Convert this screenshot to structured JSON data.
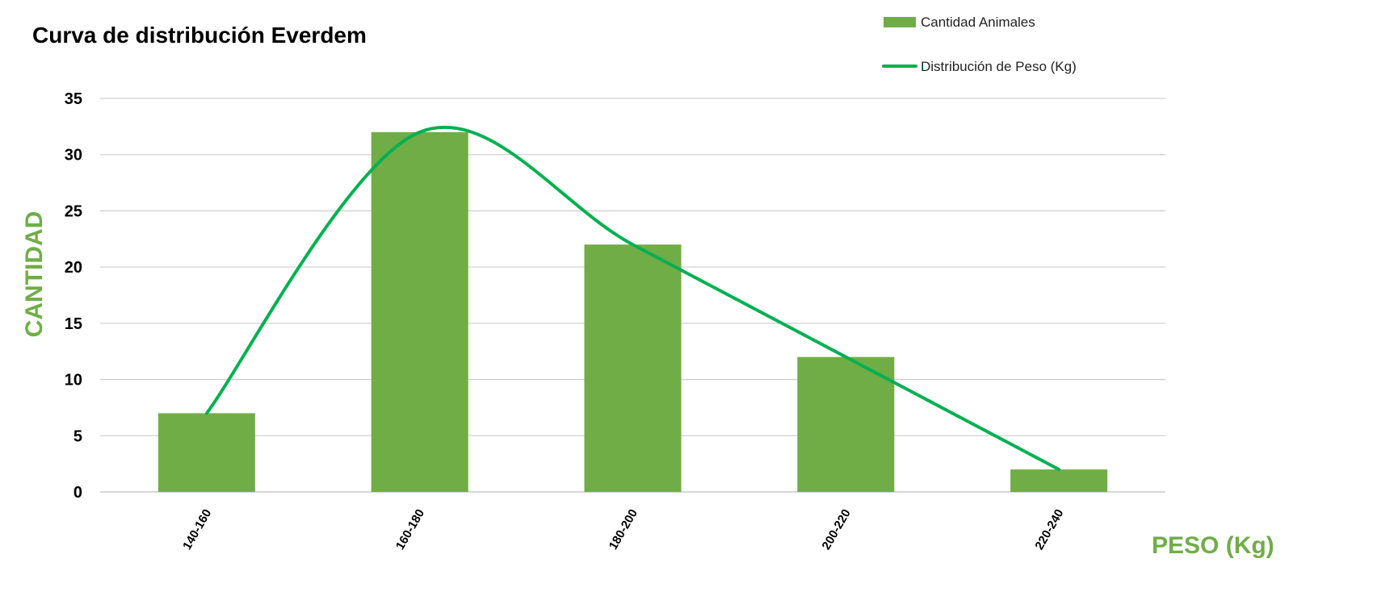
{
  "chart_data": {
    "type": "bar",
    "title": "Curva de distribución Everdem",
    "xlabel": "PESO (Kg)",
    "ylabel": "CANTIDAD",
    "categories": [
      "140-160",
      "160-180",
      "180-200",
      "200-220",
      "220-240"
    ],
    "series": [
      {
        "name": "Cantidad Animales",
        "type": "bar",
        "values": [
          7,
          32,
          22,
          12,
          2
        ],
        "color": "#70AD47"
      },
      {
        "name": "Distribución de Peso (Kg)",
        "type": "line",
        "smooth": true,
        "values": [
          7,
          32,
          22,
          12,
          2
        ],
        "color": "#00B050"
      }
    ],
    "ylim": [
      0,
      35
    ],
    "yticks": [
      "0",
      "5",
      "10",
      "15",
      "20",
      "25",
      "30",
      "35"
    ],
    "grid": true,
    "legend": "top-right",
    "colors": {
      "axis_label": "#70AD47",
      "grid": "#d0d0d0"
    }
  }
}
